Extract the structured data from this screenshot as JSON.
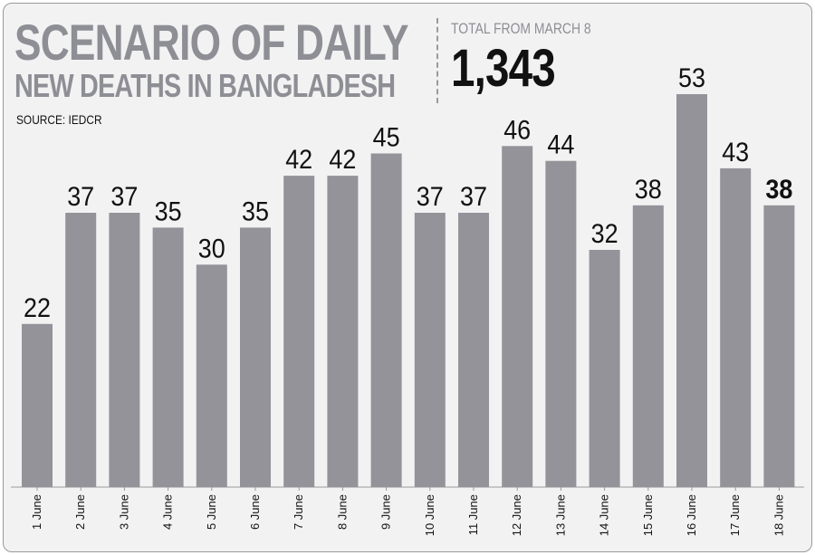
{
  "header": {
    "title_line1": "SCENARIO OF DAILY",
    "title_line2": "NEW DEATHS IN BANGLADESH",
    "source": "SOURCE: IEDCR",
    "total_label": "TOTAL FROM MARCH 8",
    "total_value": "1,343"
  },
  "colors": {
    "bar": "#939399",
    "title": "#8e8e95",
    "background": "#f2f2f3"
  },
  "chart_data": {
    "type": "bar",
    "title": "SCENARIO OF DAILY NEW DEATHS IN BANGLADESH",
    "xlabel": "",
    "ylabel": "",
    "categories": [
      "1 June",
      "2 June",
      "3 June",
      "4 June",
      "5 June",
      "6 June",
      "7 June",
      "8 June",
      "9 June",
      "10 June",
      "11 June",
      "12 June",
      "13 June",
      "14 June",
      "15 June",
      "16 June",
      "17 June",
      "18 June"
    ],
    "values": [
      22,
      37,
      37,
      35,
      30,
      35,
      42,
      42,
      45,
      37,
      37,
      46,
      44,
      32,
      38,
      53,
      43,
      38
    ],
    "highlight_last": true,
    "ylim": [
      0,
      53
    ],
    "grid": false,
    "legend": "none"
  }
}
